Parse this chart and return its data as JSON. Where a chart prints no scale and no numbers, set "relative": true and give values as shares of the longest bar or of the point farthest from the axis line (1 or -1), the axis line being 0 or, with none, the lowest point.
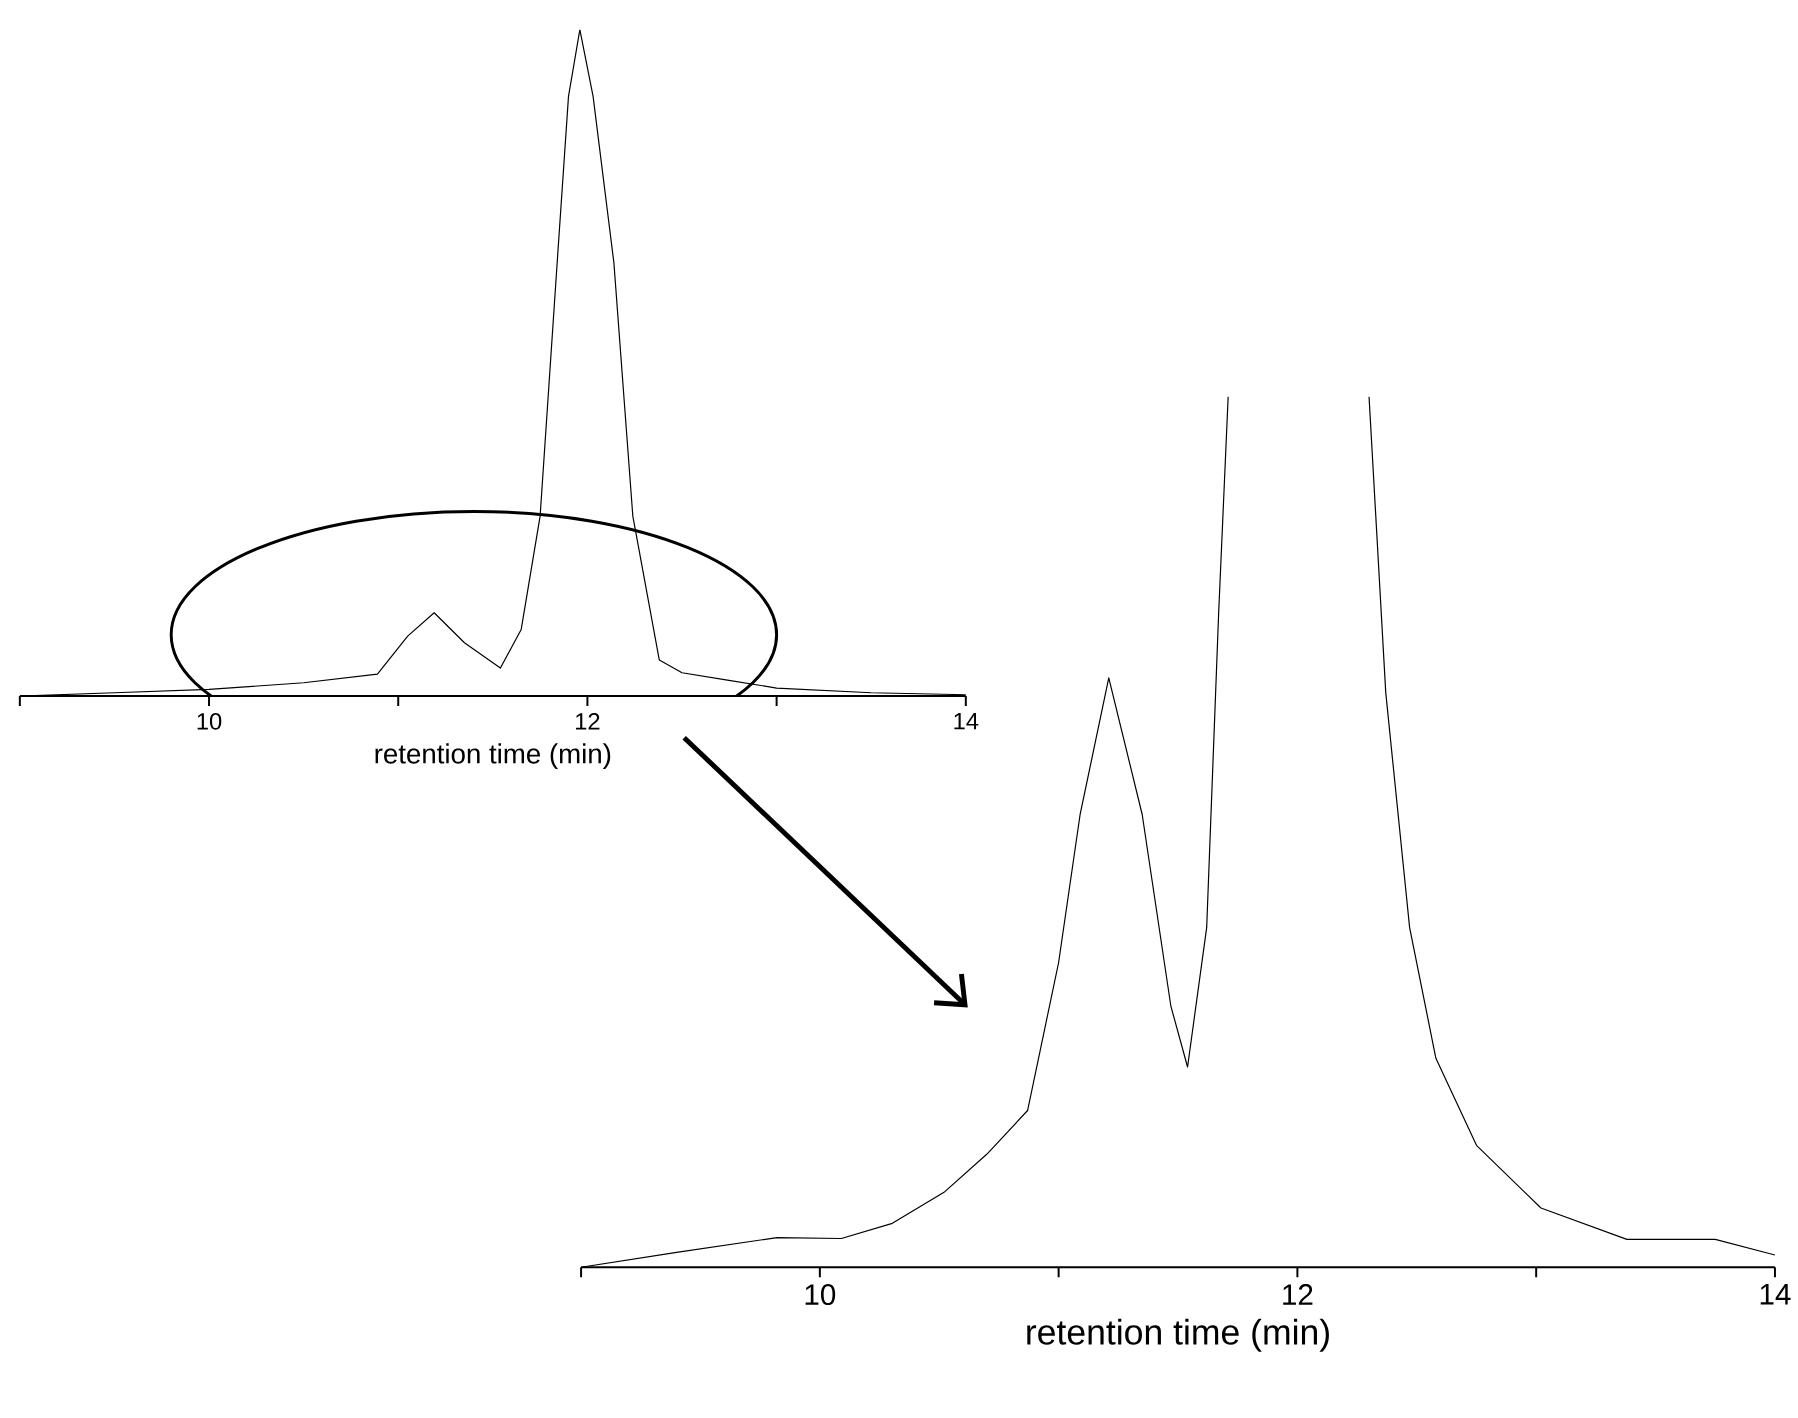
{
  "chart_data": [
    {
      "type": "line",
      "relative": true,
      "xlabel": "retention time (min)",
      "xlim": [
        9,
        14
      ],
      "xticks": [
        {
          "value": 9,
          "label": null
        },
        10,
        {
          "value": 11,
          "label": null
        },
        12,
        {
          "value": 13,
          "label": null
        },
        14
      ],
      "series": [
        {
          "color": "#000000",
          "x": [
            9,
            9.5,
            10,
            10.5,
            10.89,
            11.05,
            11.19,
            11.35,
            11.54,
            11.65,
            11.75,
            11.84,
            11.9,
            11.96,
            12.03,
            12.14,
            12.24,
            12.38,
            12.5,
            12.74,
            13,
            13.5,
            14
          ],
          "values": [
            0,
            0.005,
            0.01,
            0.02,
            0.033,
            0.09,
            0.125,
            0.08,
            0.042,
            0.1,
            0.27,
            0.65,
            0.9,
            1,
            0.9,
            0.65,
            0.27,
            0.054,
            0.035,
            0.024,
            0.012,
            0.005,
            0.002
          ]
        }
      ]
    },
    {
      "type": "line",
      "relative": true,
      "xlabel": "retention time (min)",
      "xlim": [
        9,
        14
      ],
      "xticks": [
        {
          "value": 9,
          "label": null
        },
        10,
        {
          "value": 11,
          "label": null
        },
        12,
        {
          "value": 13,
          "label": null
        },
        14
      ],
      "series": [
        {
          "color": "#000000",
          "x": [
            9,
            9.4,
            9.82,
            10.09,
            10.3,
            10.52,
            10.7,
            10.87,
            11.0,
            11.09,
            11.21,
            11.35,
            11.47,
            11.54,
            11.62,
            11.67,
            11.71,
            12.0,
            12.3,
            12.37,
            12.47,
            12.58,
            12.75,
            13.02,
            13.38,
            13.75,
            14.0
          ],
          "values": [
            0,
            0.017,
            0.034,
            0.033,
            0.05,
            0.086,
            0.13,
            0.18,
            0.35,
            0.52,
            0.677,
            0.52,
            0.3,
            0.23,
            0.39,
            0.75,
            1,
            null,
            1,
            0.66,
            0.39,
            0.24,
            0.14,
            0.068,
            0.032,
            0.032,
            0.014
          ]
        }
      ]
    }
  ]
}
